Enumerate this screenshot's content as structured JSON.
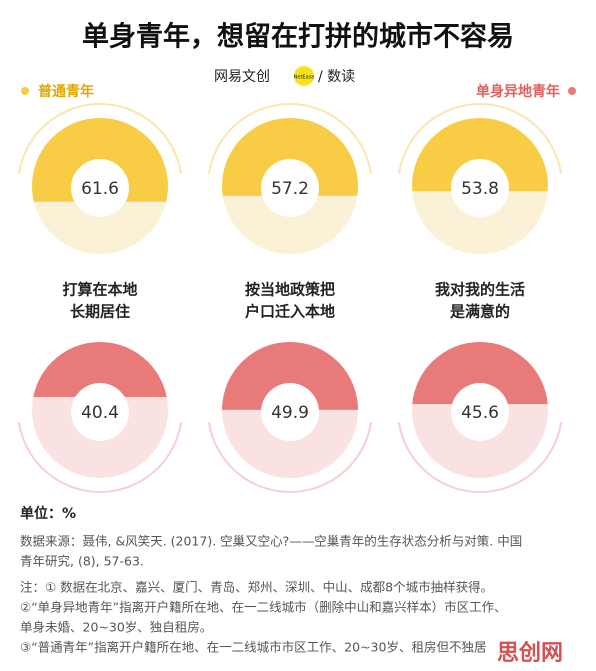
{
  "chart_data": {
    "type": "fill-circle",
    "title": "单身青年，想留在打拼的城市不容易",
    "logo": [
      "网易文创",
      "NetEase",
      "/ 数读"
    ],
    "categories": [
      [
        "打算在本地",
        "长期居住"
      ],
      [
        "按当地政策把",
        "户口迁入本地"
      ],
      [
        "我对我的生活",
        "是满意的"
      ]
    ],
    "series": [
      {
        "name": "普通青年",
        "color": "#f8cd45",
        "values": [
          61.6,
          57.2,
          53.8
        ]
      },
      {
        "name": "单身异地青年",
        "color": "#e97a7a",
        "values": [
          40.4,
          49.9,
          45.6
        ]
      }
    ],
    "ylim": [
      0,
      100
    ],
    "unit": "单位：%",
    "source": [
      "数据来源：聂伟, &风笑天. (2017). 空巢又空心?——空巢青年的生存状态分析与对策. 中国",
      "青年研究, (8), 57-63."
    ],
    "notes": [
      "注：① 数据在北京、嘉兴、厦门、青岛、郑州、深圳、中山、成都8个城市抽样获得。",
      "②“单身异地青年”指离开户籍所在地、在一二线城市（删除中山和嘉兴样本）市区工作、",
      "单身未婚、20~30岁、独自租房。",
      "③“普通青年”指离开户籍所在地、在一二线城市市区工作、20~30岁、租房但不独居"
    ],
    "watermark": "思创网"
  }
}
